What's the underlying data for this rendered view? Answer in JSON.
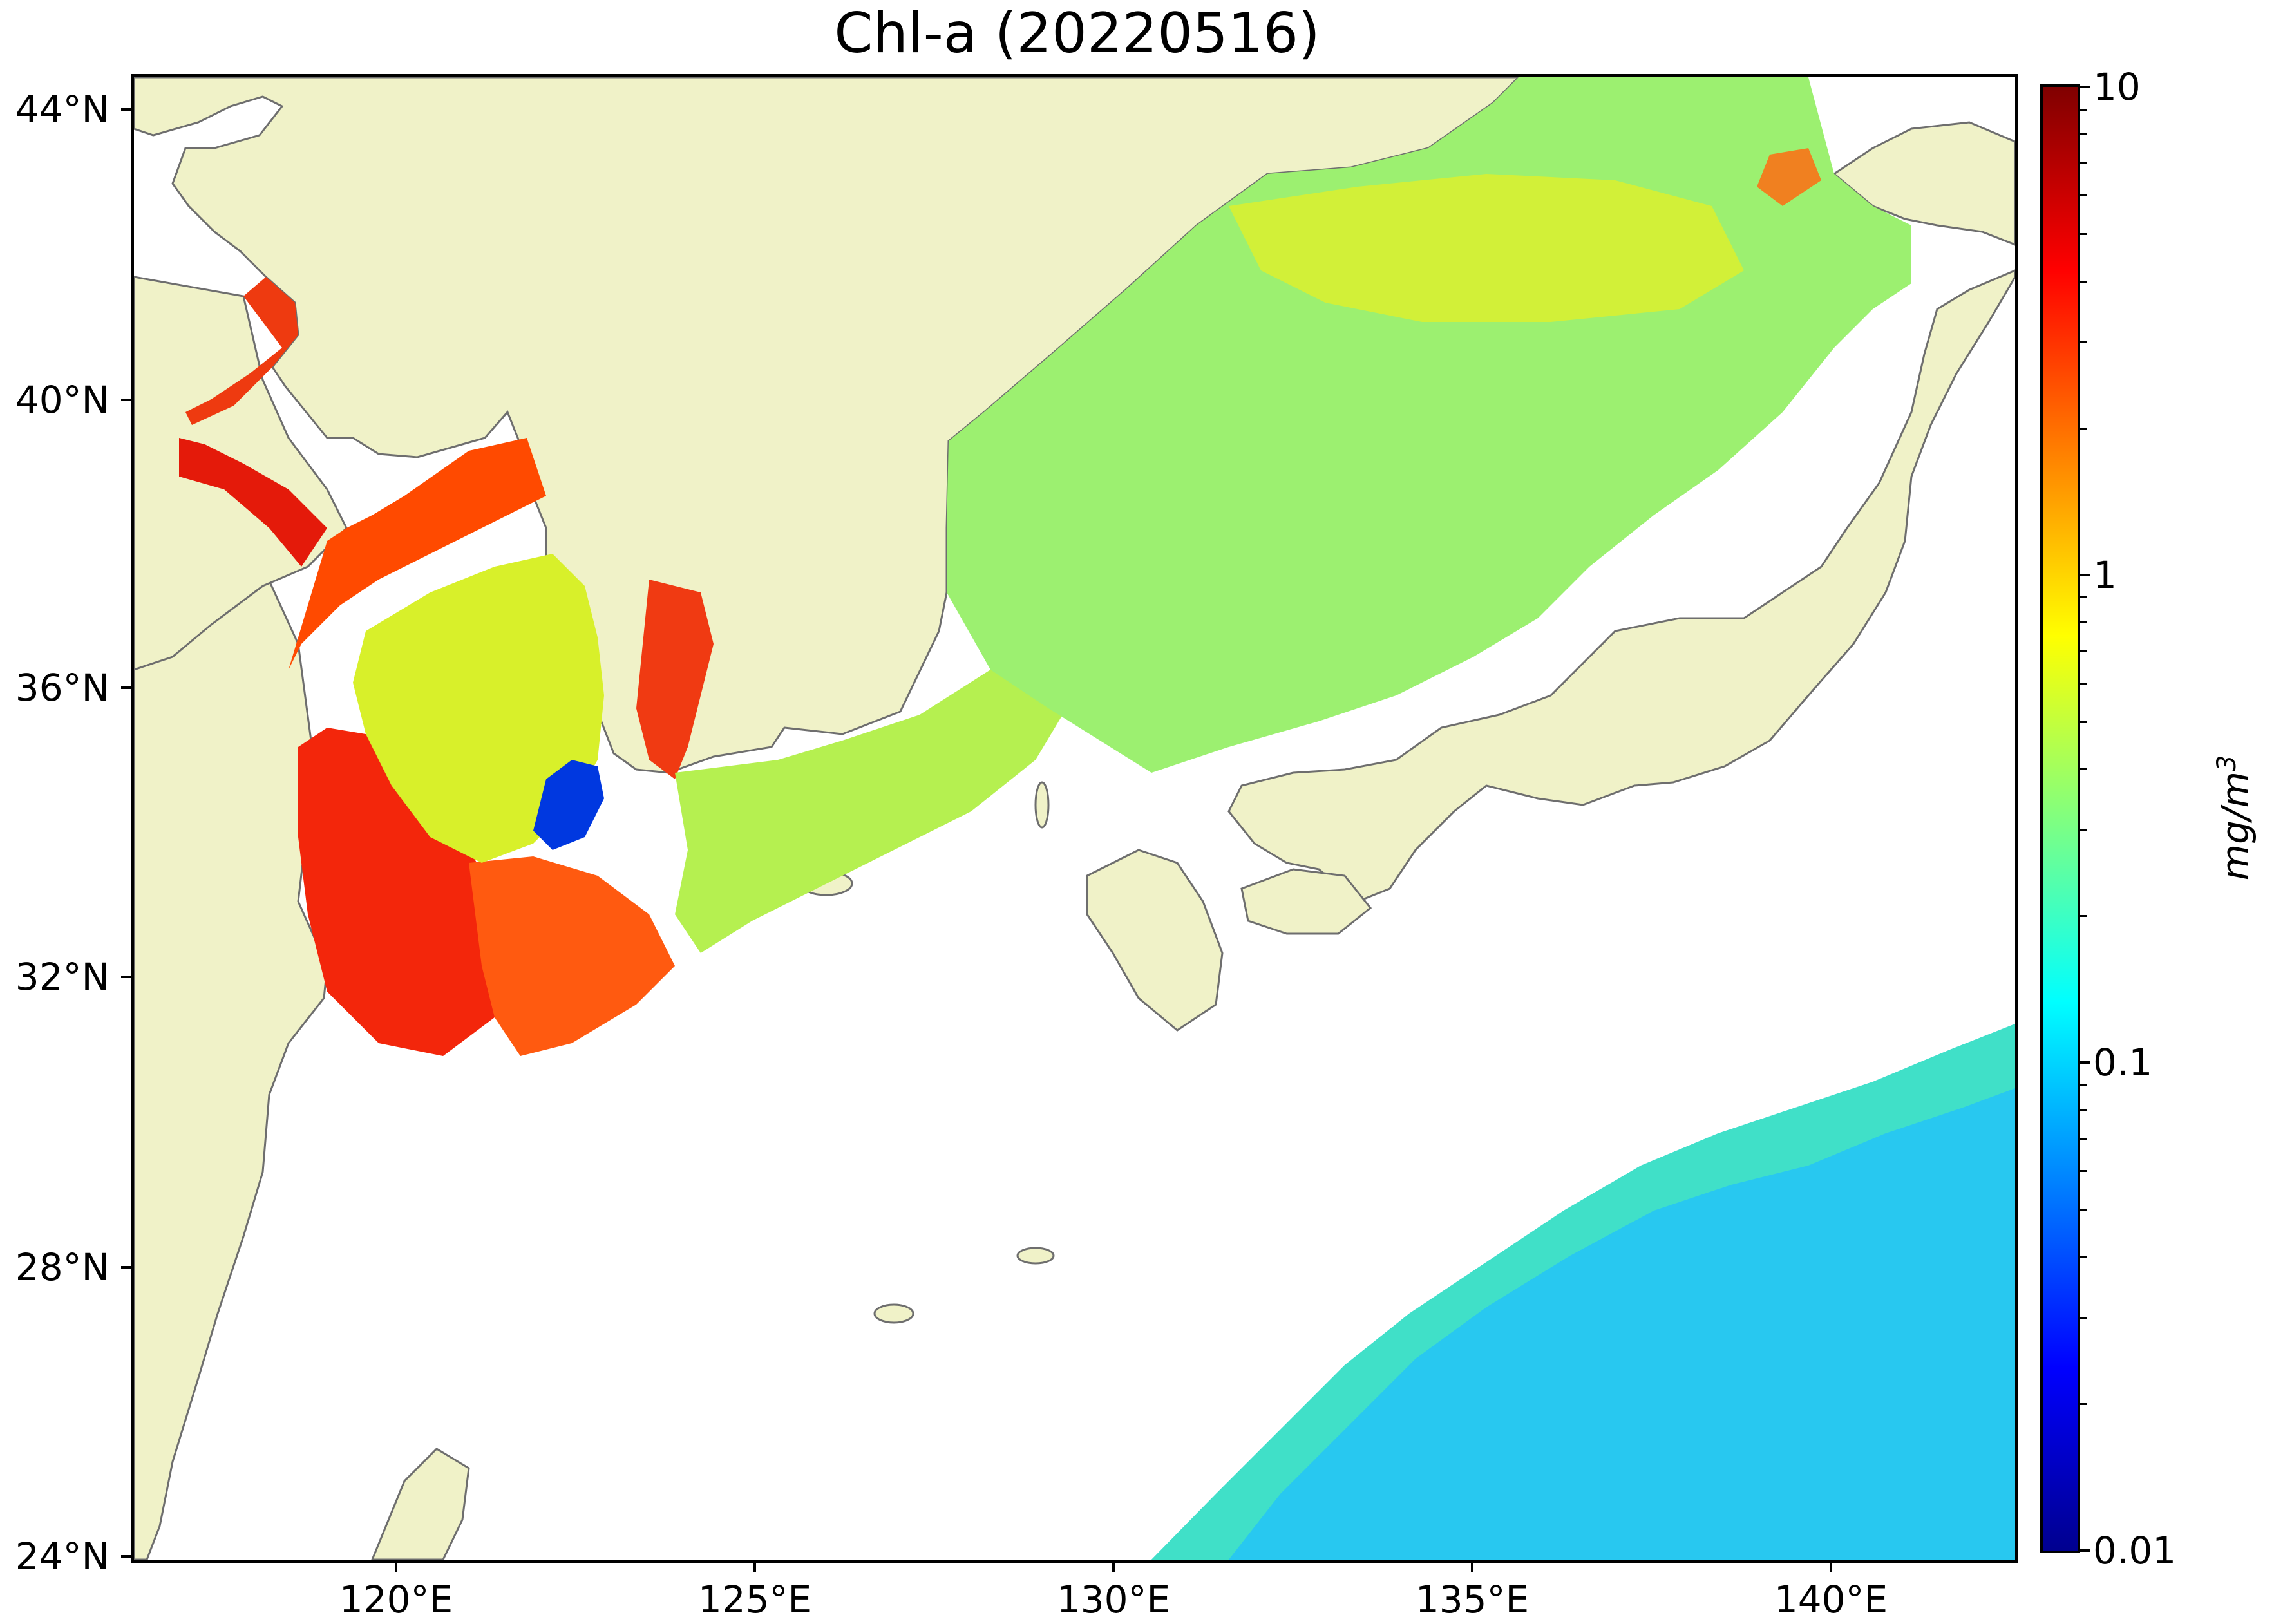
{
  "title": "Chl-a (20220516)",
  "map": {
    "lat_labels": [
      "44°N",
      "40°N",
      "36°N",
      "32°N",
      "28°N",
      "24°N"
    ],
    "lon_labels": [
      "120°E",
      "125°E",
      "130°E",
      "135°E",
      "140°E"
    ],
    "extent_lon": [
      116.7,
      143.0
    ],
    "extent_lat": [
      23.9,
      44.5
    ],
    "land_color": "#f0f2c8",
    "coast_color": "#6e6e6e",
    "nodata_color": "#ffffff"
  },
  "colorbar": {
    "labels": [
      "10",
      "1",
      "0.1",
      "0.01"
    ],
    "unit": "mg/m",
    "unit_sup": "3",
    "scale": "log",
    "range": [
      0.01,
      10
    ],
    "colormap": "jet",
    "colors": [
      "#00008f",
      "#0000ff",
      "#0080ff",
      "#00ffff",
      "#80ff80",
      "#ffff00",
      "#ff8000",
      "#ff0000",
      "#800000"
    ]
  }
}
